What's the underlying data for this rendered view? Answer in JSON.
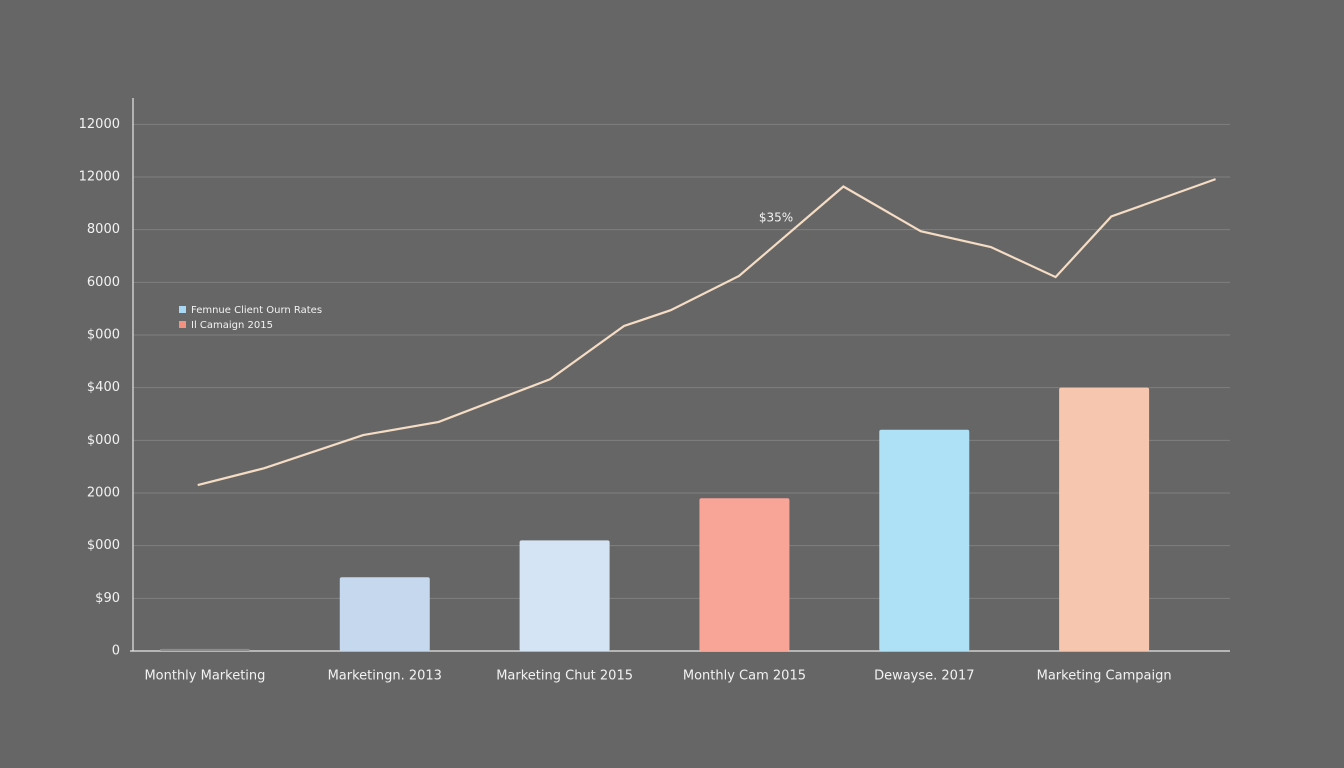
{
  "chart_data": {
    "type": "bar-line",
    "categories": [
      "Monthly Marketing",
      "Marketingn. 2013",
      "Marketing Chut 2015",
      "Monthly Cam 2015",
      "Dewayse. 2017",
      "Marketing Campaign"
    ],
    "xlim": [
      -0.4,
      5.7
    ],
    "ylim": [
      0,
      10500
    ],
    "yticks": [
      0,
      {
        "value": 1000,
        "label": "$90"
      },
      {
        "value": 2000,
        "label": "$000"
      },
      {
        "value": 3000,
        "label": "2000"
      },
      {
        "value": 4000,
        "label": "$000"
      },
      {
        "value": 5000,
        "label": "$400"
      },
      {
        "value": 6000,
        "label": "$000"
      },
      {
        "value": 7000,
        "label": "6000"
      },
      8000,
      {
        "value": 9000,
        "label": "12000"
      },
      {
        "value": 10000,
        "label": "12000"
      }
    ],
    "grid": true,
    "legend": "upper left",
    "annotation": "$35%",
    "series": [
      {
        "name": "Femnue Client Ourn Rates",
        "type": "bar",
        "color": "#a9d8f5",
        "colors": [
          "#8c8c8c",
          "#c5d8ee",
          "#d4e4f4",
          "#f8a497",
          "#aee0f6",
          "#f6c6ae"
        ],
        "values": [
          40,
          1400,
          2100,
          2900,
          4200,
          5000
        ]
      },
      {
        "name": "Il Camaign 2015",
        "type": "line",
        "color": "#f4907f",
        "line_color": "#f5dcc4",
        "x": [
          -0.04,
          0.33,
          0.88,
          1.3,
          1.92,
          2.33,
          2.59,
          2.97,
          3.55,
          3.98,
          4.37,
          4.73,
          5.04,
          5.62
        ],
        "values": [
          3150,
          3470,
          4100,
          4350,
          5160,
          6170,
          6470,
          7120,
          8820,
          7970,
          7670,
          7100,
          8250,
          8960
        ]
      }
    ]
  }
}
